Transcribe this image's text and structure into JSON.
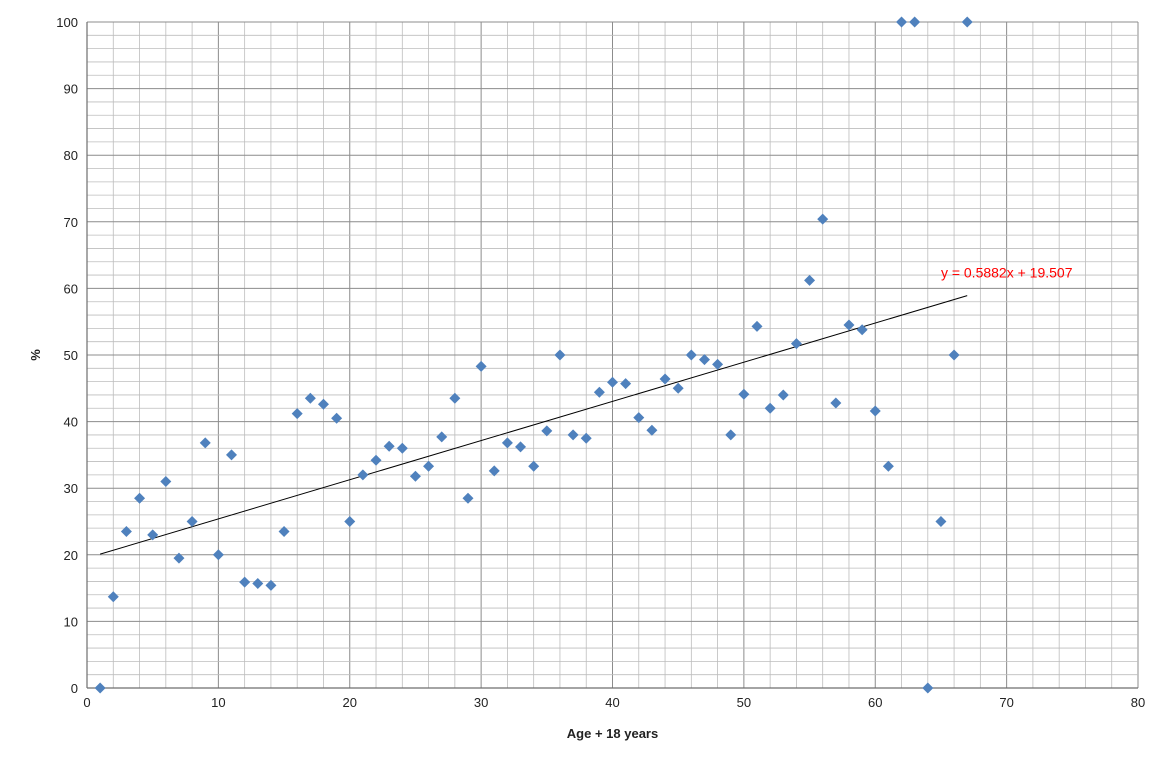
{
  "chart_data": {
    "type": "scatter",
    "title": "",
    "xlabel": "Age + 18 years",
    "ylabel": "%",
    "xlim": [
      0,
      80
    ],
    "ylim": [
      0,
      100
    ],
    "x_ticks": [
      0,
      10,
      20,
      30,
      40,
      50,
      60,
      70,
      80
    ],
    "y_ticks": [
      0,
      10,
      20,
      30,
      40,
      50,
      60,
      70,
      80,
      90,
      100
    ],
    "x_tick_labels": [
      "0",
      "10",
      "20",
      "30",
      "40",
      "50",
      "60",
      "70",
      "80"
    ],
    "y_tick_labels": [
      "0",
      "10",
      "20",
      "30",
      "40",
      "50",
      "60",
      "70",
      "80",
      "90",
      "100"
    ],
    "minor_grid_step_x": 2,
    "minor_grid_step_y": 2,
    "grid": true,
    "marker_color": "#4f81bd",
    "series": [
      {
        "points": [
          [
            1,
            0
          ],
          [
            2,
            13.7
          ],
          [
            3,
            23.5
          ],
          [
            4,
            28.5
          ],
          [
            5,
            23
          ],
          [
            6,
            31
          ],
          [
            7,
            19.5
          ],
          [
            8,
            25
          ],
          [
            9,
            36.8
          ],
          [
            10,
            20
          ],
          [
            11,
            35
          ],
          [
            12,
            15.9
          ],
          [
            13,
            15.7
          ],
          [
            14,
            15.4
          ],
          [
            15,
            23.5
          ],
          [
            16,
            41.2
          ],
          [
            17,
            43.5
          ],
          [
            18,
            42.6
          ],
          [
            19,
            40.5
          ],
          [
            20,
            25
          ],
          [
            21,
            32
          ],
          [
            22,
            34.2
          ],
          [
            23,
            36.3
          ],
          [
            24,
            36
          ],
          [
            25,
            31.8
          ],
          [
            26,
            33.3
          ],
          [
            27,
            37.7
          ],
          [
            28,
            43.5
          ],
          [
            29,
            28.5
          ],
          [
            30,
            48.3
          ],
          [
            31,
            32.6
          ],
          [
            32,
            36.8
          ],
          [
            33,
            36.2
          ],
          [
            34,
            33.3
          ],
          [
            35,
            38.6
          ],
          [
            36,
            50
          ],
          [
            37,
            38
          ],
          [
            38,
            37.5
          ],
          [
            39,
            44.4
          ],
          [
            40,
            45.9
          ],
          [
            41,
            45.7
          ],
          [
            42,
            40.6
          ],
          [
            43,
            38.7
          ],
          [
            44,
            46.4
          ],
          [
            45,
            45
          ],
          [
            46,
            50
          ],
          [
            47,
            49.3
          ],
          [
            48,
            48.6
          ],
          [
            49,
            38
          ],
          [
            50,
            44.1
          ],
          [
            51,
            54.3
          ],
          [
            52,
            42
          ],
          [
            53,
            44
          ],
          [
            54,
            51.7
          ],
          [
            55,
            61.2
          ],
          [
            56,
            70.4
          ],
          [
            57,
            42.8
          ],
          [
            58,
            54.5
          ],
          [
            59,
            53.8
          ],
          [
            60,
            41.6
          ],
          [
            61,
            33.3
          ],
          [
            62,
            100
          ],
          [
            63,
            100
          ],
          [
            64,
            0
          ],
          [
            65,
            25
          ],
          [
            66,
            50
          ],
          [
            67,
            100
          ]
        ]
      }
    ],
    "trendline": {
      "slope": 0.5882,
      "intercept": 19.507,
      "x_range": [
        1,
        67
      ],
      "color": "#000000",
      "equation_label": "y = 0.5882x + 19.507",
      "equation_color": "#ff0000"
    }
  }
}
